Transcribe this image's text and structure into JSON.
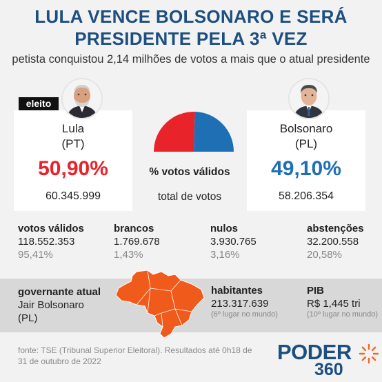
{
  "header": {
    "title_line1": "LULA VENCE BOLSONARO E SERÁ",
    "title_line2": "PRESIDENTE PELA 3ª VEZ",
    "subtitle": "petista conquistou 2,14 milhões de votos a mais que o atual presidente"
  },
  "candidates": {
    "left": {
      "badge": "eleito",
      "name": "Lula",
      "party": "(PT)",
      "percent": "50,90%",
      "votes": "60.345.999",
      "color": "#e8232a"
    },
    "right": {
      "name": "Bolsonaro",
      "party": "(PL)",
      "percent": "49,10%",
      "votes": "58.206.354",
      "color": "#1f6fb5"
    }
  },
  "middle": {
    "percent_label": "% votos válidos",
    "votes_label": "total de votos"
  },
  "chart_data": {
    "type": "pie",
    "categories": [
      "Lula",
      "Bolsonaro"
    ],
    "values": [
      50.9,
      49.1
    ],
    "colors": [
      "#e8232a",
      "#1f6fb5"
    ]
  },
  "stats": [
    {
      "label": "votos válidos",
      "value": "118.552.353",
      "percent": "95,41%"
    },
    {
      "label": "brancos",
      "value": "1.769.678",
      "percent": "1,43%"
    },
    {
      "label": "nulos",
      "value": "3.930.765",
      "percent": "3,16%"
    },
    {
      "label": "abstenções",
      "value": "32.200.558",
      "percent": "20,58%"
    }
  ],
  "country": {
    "governor_label": "governante atual",
    "governor_name": "Jair Bolsonaro",
    "governor_party": "(PL)",
    "population_label": "habitantes",
    "population_value": "213.317.639",
    "population_note": "(6º lugar no mundo)",
    "gdp_label": "PIB",
    "gdp_value": "R$ 1,445 tri",
    "gdp_note": "(10º lugar no mundo)",
    "map_color": "#f05a1a"
  },
  "footer": {
    "source": "fonte: TSE (Tribunal Superior Eleitoral). Resultados até 0h18 de 31 de outubro de 2022",
    "logo_word": "PODER",
    "logo_number": "360"
  }
}
